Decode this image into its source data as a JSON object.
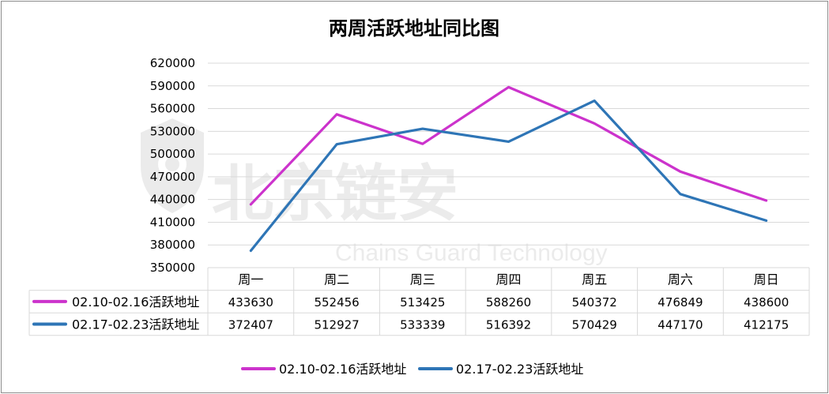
{
  "chart_data": {
    "type": "line",
    "title": "两周活跃地址同比图",
    "categories": [
      "周一",
      "周二",
      "周三",
      "周四",
      "周五",
      "周六",
      "周日"
    ],
    "series": [
      {
        "name": "02.10-02.16活跃地址",
        "color": "#cc33cc",
        "values": [
          433630,
          552456,
          513425,
          588260,
          540372,
          476849,
          438600
        ]
      },
      {
        "name": "02.17-02.23活跃地址",
        "color": "#2e75b6",
        "values": [
          372407,
          512927,
          533339,
          516392,
          570429,
          447170,
          412175
        ]
      }
    ],
    "ylim": [
      350000,
      620000
    ],
    "yticks": [
      350000,
      380000,
      410000,
      440000,
      470000,
      500000,
      530000,
      560000,
      590000,
      620000
    ],
    "grid": true,
    "legend": "bottom",
    "data_table": true
  },
  "watermark": {
    "text_cn": "北京链安",
    "text_en": "Chains Guard Technology",
    "icon": "shield-chain-logo"
  }
}
